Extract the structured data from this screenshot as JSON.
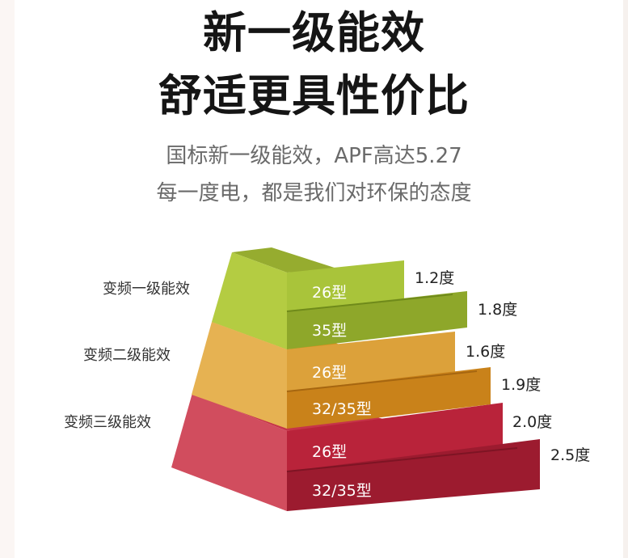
{
  "title": {
    "line1": "新一级能效",
    "line2": "舒适更具性价比"
  },
  "subtitle": {
    "line1": "国标新一级能效，APF高达5.27",
    "line2": "每一度电，都是我们对环保的态度"
  },
  "levels": [
    {
      "label": "变频一级能效",
      "colors": {
        "top": "#96ac2f",
        "front": "#b4cc42",
        "side": "#849e22"
      },
      "bars": [
        {
          "model": "26型",
          "value": "1.2度",
          "color": "#a9c43a"
        },
        {
          "model": "35型",
          "value": "1.8度",
          "color": "#8ea72a"
        }
      ]
    },
    {
      "label": "变频二级能效",
      "colors": {
        "top": "#d8901e",
        "front": "#e6b252",
        "side": "#c8861c"
      },
      "bars": [
        {
          "model": "26型",
          "value": "1.6度",
          "color": "#dca13a"
        },
        {
          "model": "32/35型",
          "value": "1.9度",
          "color": "#c9821a"
        }
      ]
    },
    {
      "label": "变频三级能效",
      "colors": {
        "top": "#c63449",
        "front": "#d14d5e",
        "side": "#b12539"
      },
      "bars": [
        {
          "model": "26型",
          "value": "2.0度",
          "color": "#b9233a"
        },
        {
          "model": "32/35型",
          "value": "2.5度",
          "color": "#9c1b2f"
        }
      ]
    }
  ]
}
